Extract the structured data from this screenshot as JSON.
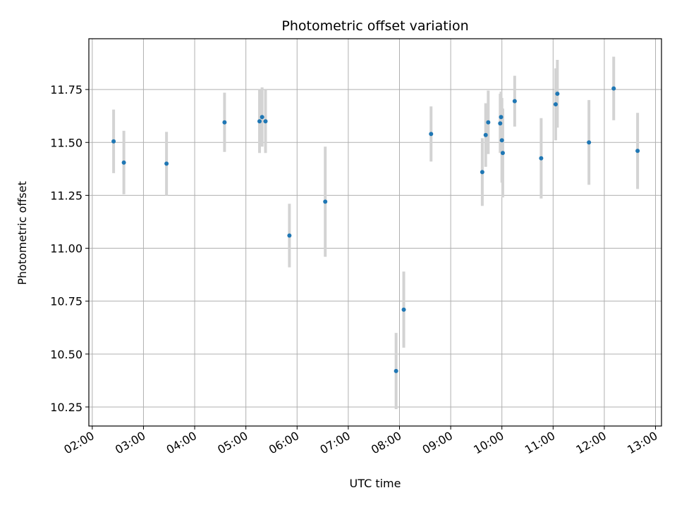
{
  "chart_data": {
    "type": "scatter",
    "title": "Photometric offset variation",
    "xlabel": "UTC time",
    "ylabel": "Photometric offset",
    "x_axis_type": "time",
    "xlim": [
      "01:56",
      "13:07"
    ],
    "ylim": [
      10.16,
      11.99
    ],
    "grid": true,
    "x_ticks": [
      "02:00",
      "03:00",
      "04:00",
      "05:00",
      "06:00",
      "07:00",
      "08:00",
      "09:00",
      "10:00",
      "11:00",
      "12:00",
      "13:00"
    ],
    "y_ticks": [
      "10.25",
      "10.50",
      "10.75",
      "11.00",
      "11.25",
      "11.50",
      "11.75"
    ],
    "colors": {
      "point": "#1f77b4",
      "errorbar": "#d3d3d3",
      "grid": "#b0b0b0"
    },
    "points": [
      {
        "x": "02:25",
        "y": 11.505,
        "err": 0.15
      },
      {
        "x": "02:37",
        "y": 11.405,
        "err": 0.15
      },
      {
        "x": "03:27",
        "y": 11.4,
        "err": 0.15
      },
      {
        "x": "04:35",
        "y": 11.595,
        "err": 0.14
      },
      {
        "x": "05:16",
        "y": 11.6,
        "err": 0.15
      },
      {
        "x": "05:19",
        "y": 11.62,
        "err": 0.14
      },
      {
        "x": "05:23",
        "y": 11.6,
        "err": 0.15
      },
      {
        "x": "05:51",
        "y": 11.06,
        "err": 0.15
      },
      {
        "x": "06:33",
        "y": 11.22,
        "err": 0.26
      },
      {
        "x": "07:56",
        "y": 10.42,
        "err": 0.18
      },
      {
        "x": "08:05",
        "y": 10.71,
        "err": 0.18
      },
      {
        "x": "08:37",
        "y": 11.54,
        "err": 0.13
      },
      {
        "x": "09:37",
        "y": 11.36,
        "err": 0.16
      },
      {
        "x": "09:41",
        "y": 11.535,
        "err": 0.15
      },
      {
        "x": "09:44",
        "y": 11.595,
        "err": 0.15
      },
      {
        "x": "09:58",
        "y": 11.59,
        "err": 0.14
      },
      {
        "x": "09:59",
        "y": 11.62,
        "err": 0.12
      },
      {
        "x": "10:00",
        "y": 11.51,
        "err": 0.2
      },
      {
        "x": "10:01",
        "y": 11.45,
        "err": 0.21
      },
      {
        "x": "10:15",
        "y": 11.695,
        "err": 0.12
      },
      {
        "x": "10:46",
        "y": 11.425,
        "err": 0.19
      },
      {
        "x": "11:03",
        "y": 11.68,
        "err": 0.17
      },
      {
        "x": "11:05",
        "y": 11.73,
        "err": 0.16
      },
      {
        "x": "11:42",
        "y": 11.5,
        "err": 0.2
      },
      {
        "x": "12:11",
        "y": 11.755,
        "err": 0.15
      },
      {
        "x": "12:39",
        "y": 11.46,
        "err": 0.18
      }
    ]
  }
}
